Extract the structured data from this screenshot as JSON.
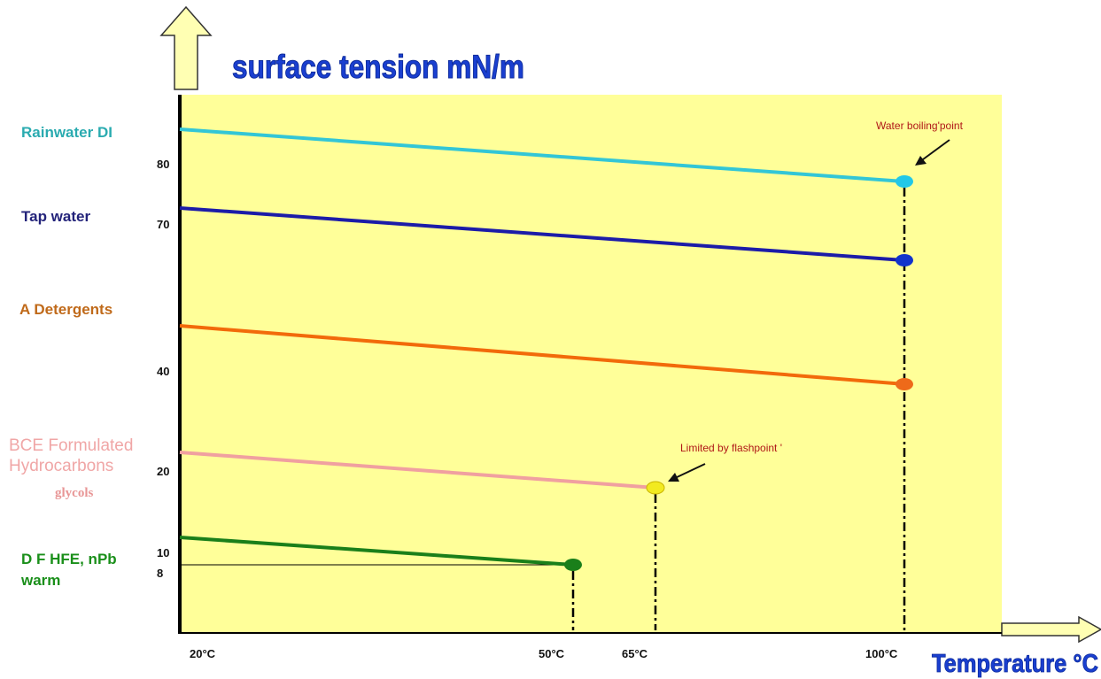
{
  "chart_data": {
    "type": "line",
    "title": "surface tension mN/m",
    "xlabel": "Temperature °C",
    "ylabel": "surface tension mN/m",
    "x_ticks": [
      "20°C",
      "50°C",
      "65°C",
      "100°C"
    ],
    "y_ticks": [
      "80",
      "70",
      "40",
      "20",
      "10",
      "8"
    ],
    "series": [
      {
        "name": "Rainwater DI",
        "color": "#33c6d6",
        "marker_color": "#22c8e8",
        "x": [
          "20°C",
          "100°C"
        ],
        "values": [
          86,
          78
        ]
      },
      {
        "name": "Tap water",
        "color": "#1c1ca8",
        "marker_color": "#1133cc",
        "x": [
          "20°C",
          "100°C"
        ],
        "values": [
          72,
          63
        ]
      },
      {
        "name": "A Detergents",
        "color": "#f26a0a",
        "marker_color": "#ee6a1a",
        "x": [
          "20°C",
          "100°C"
        ],
        "values": [
          50,
          40
        ]
      },
      {
        "name": "BCE Formulated Hydrocarbons",
        "name_line2": "glycols",
        "color": "#f0a0a0",
        "marker_color": "#f2ea20",
        "x": [
          "20°C",
          "65°C"
        ],
        "values": [
          22,
          18
        ]
      },
      {
        "name": "D F  HFE, nPb warm",
        "color": "#1a7f1a",
        "marker_color": "#1a7f1a",
        "x": [
          "20°C",
          "50°C"
        ],
        "values": [
          11,
          8
        ]
      }
    ],
    "annotations": [
      {
        "text": "Water boiling'point",
        "target_series": "Rainwater DI"
      },
      {
        "text": "Limited by flashpoint '",
        "target_series": "BCE Formulated Hydrocarbons"
      }
    ],
    "background": "#ffff99",
    "grid": false,
    "legend": "left",
    "arrow_color": "#ffffb3"
  }
}
